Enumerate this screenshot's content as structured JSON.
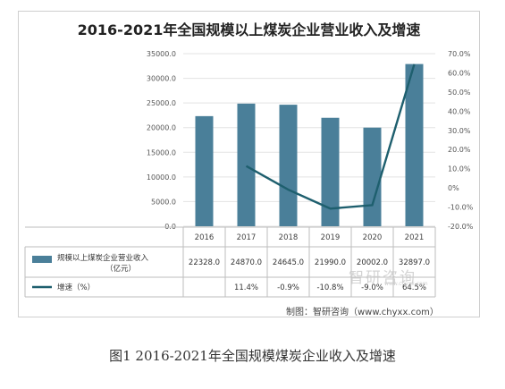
{
  "chart_data": {
    "type": "bar",
    "title": "2016-2021年全国规模以上煤炭企业营业收入及增速",
    "categories": [
      "2016",
      "2017",
      "2018",
      "2019",
      "2020",
      "2021"
    ],
    "series": [
      {
        "name": "规模以上煤炭企业营业收入（亿元）",
        "type": "bar",
        "axis": "left",
        "color": "#4a7f99",
        "values": [
          22328.0,
          24870.0,
          24645.0,
          21990.0,
          20002.0,
          32897.0
        ],
        "labels": [
          "22328.0",
          "24870.0",
          "24645.0",
          "21990.0",
          "20002.0",
          "32897.0"
        ]
      },
      {
        "name": "增速（%）",
        "type": "line",
        "axis": "right",
        "color": "#1e5f6e",
        "values": [
          null,
          11.4,
          -0.9,
          -10.8,
          -9.0,
          64.5
        ],
        "labels": [
          "",
          "11.4%",
          "-0.9%",
          "-10.8%",
          "-9.0%",
          "64.5%"
        ]
      }
    ],
    "left_axis": {
      "min": 0,
      "max": 35000,
      "step": 5000,
      "ticks": [
        "0.0",
        "5000.0",
        "10000.0",
        "15000.0",
        "20000.0",
        "25000.0",
        "30000.0",
        "35000.0"
      ]
    },
    "right_axis": {
      "min": -20,
      "max": 70,
      "step": 10,
      "ticks": [
        "-20.0%",
        "-10.0%",
        "0%",
        "10.0%",
        "20.0%",
        "30.0%",
        "40.0%",
        "50.0%",
        "60.0%",
        "70.0%"
      ]
    },
    "grid": true,
    "legend": "data-table-below"
  },
  "source_text": "制图：智研咨询（www.chyxx.com）",
  "watermark": {
    "main": "智研咨询",
    "sub": "www.chyxx.com"
  },
  "caption": "图1   2016-2021年全国规模煤炭企业收入及增速"
}
